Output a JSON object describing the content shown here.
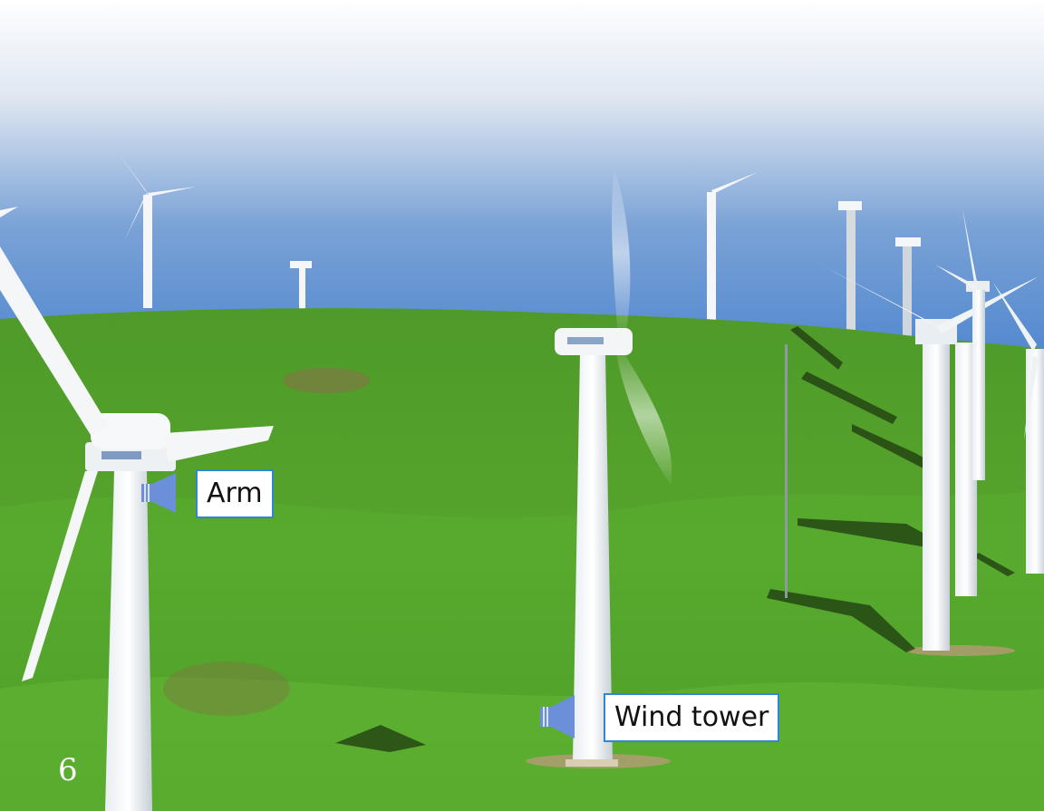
{
  "labels": {
    "arm": "Arm",
    "wind_tower": "Wind tower"
  },
  "page_number": "6",
  "icons": {
    "arm_audio": "speaker-icon",
    "wind_tower_audio": "speaker-icon"
  },
  "colors": {
    "label_border": "#2f86d6",
    "speaker": "#6b8fd8"
  }
}
